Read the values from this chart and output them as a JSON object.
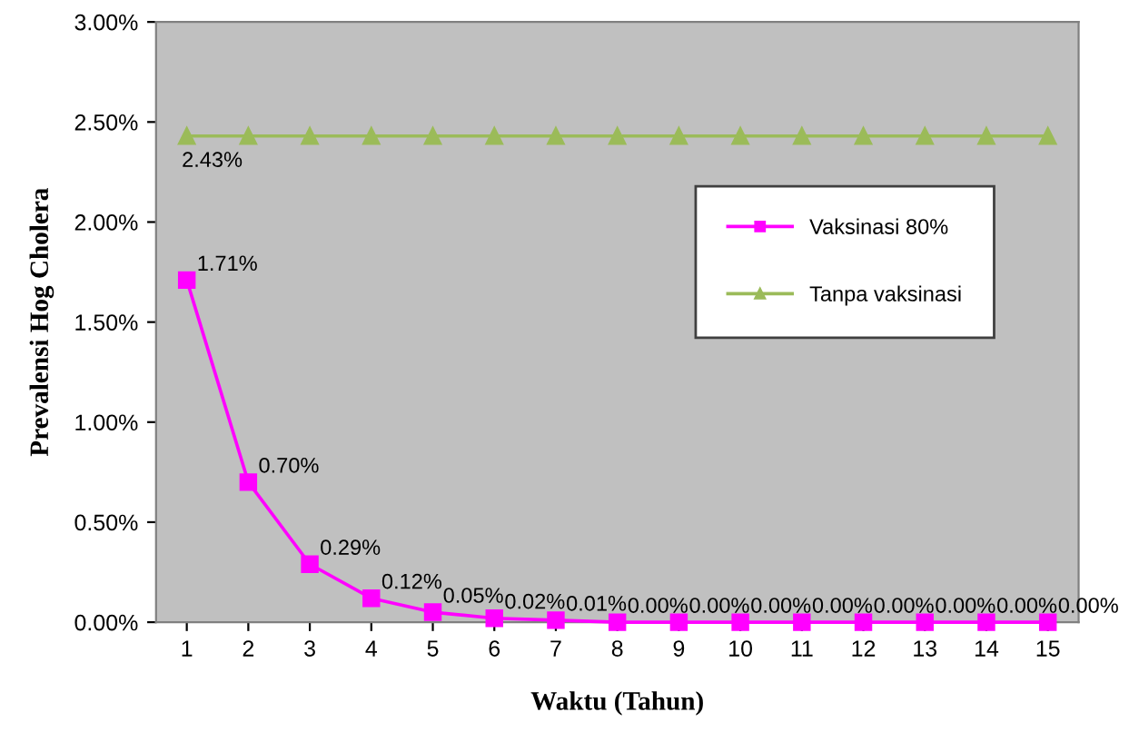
{
  "chart_data": {
    "type": "line",
    "xlabel": "Waktu (Tahun)",
    "ylabel": "Prevalensi Hog Cholera",
    "categories": [
      "1",
      "2",
      "3",
      "4",
      "5",
      "6",
      "7",
      "8",
      "9",
      "10",
      "11",
      "12",
      "13",
      "14",
      "15"
    ],
    "series": [
      {
        "name": "Vaksinasi 80%",
        "color": "#ff00ff",
        "marker": "square",
        "values": [
          1.71,
          0.7,
          0.29,
          0.12,
          0.05,
          0.02,
          0.01,
          0.0,
          0.0,
          0.0,
          0.0,
          0.0,
          0.0,
          0.0,
          0.0
        ],
        "value_labels": [
          "1.71%",
          "0.70%",
          "0.29%",
          "0.12%",
          "0.05%",
          "0.02%",
          "0.01%",
          "0.00%",
          "0.00%",
          "0.00%",
          "0.00%",
          "0.00%",
          "0.00%",
          "0.00%",
          "0.00%"
        ]
      },
      {
        "name": "Tanpa vaksinasi",
        "color": "#9bbb59",
        "marker": "triangle",
        "values": [
          2.43,
          2.43,
          2.43,
          2.43,
          2.43,
          2.43,
          2.43,
          2.43,
          2.43,
          2.43,
          2.43,
          2.43,
          2.43,
          2.43,
          2.43
        ],
        "value_labels": [
          "2.43%",
          null,
          null,
          null,
          null,
          null,
          null,
          null,
          null,
          null,
          null,
          null,
          null,
          null,
          null
        ]
      }
    ],
    "ylim": [
      0,
      3
    ],
    "yticks": [
      {
        "value": 0,
        "label": "0.00%"
      },
      {
        "value": 0.5,
        "label": "0.50%"
      },
      {
        "value": 1,
        "label": "1.00%"
      },
      {
        "value": 1.5,
        "label": "1.50%"
      },
      {
        "value": 2,
        "label": "2.00%"
      },
      {
        "value": 2.5,
        "label": "2.50%"
      },
      {
        "value": 3,
        "label": "3.00%"
      }
    ],
    "grid": false,
    "legend": "right"
  }
}
